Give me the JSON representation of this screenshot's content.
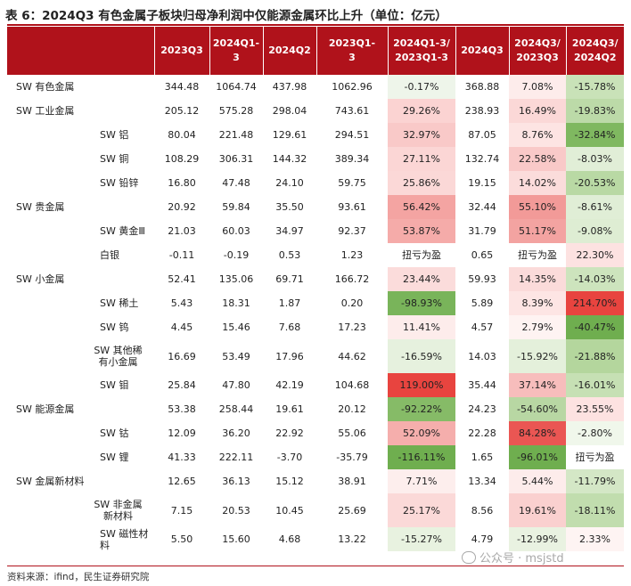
{
  "title": "表 6：2024Q3 有色金属子板块归母净利润中仅能源金属环比上升（单位：亿元）",
  "headers": [
    "",
    "2023Q3",
    "2024Q1-\n3",
    "2024Q2",
    "2023Q1-\n3",
    "2024Q1-3/\n2023Q1-3",
    "2024Q3",
    "2024Q3/\n2023Q3",
    "2024Q3/\n2024Q2"
  ],
  "colors": {
    "header_bg": "#b0121b",
    "red_strong": "#e8443f",
    "red_mid": "#f4a4a2",
    "red_light": "#fbd8d7",
    "red_pale": "#fdeceb",
    "green_strong": "#6fae4f",
    "green_mid": "#a8d08d",
    "green_light": "#d5e8c8",
    "green_pale": "#eaf3e3"
  },
  "rows": [
    {
      "name": "SW 有色金属",
      "level": 1,
      "cells": [
        "344.48",
        "1064.74",
        "437.98",
        "1062.96",
        "-0.17%",
        "368.88",
        "7.08%",
        "-15.78%"
      ],
      "colors": [
        "",
        "",
        "",
        "",
        "#eef5ea",
        "",
        "#fdeceb",
        "#c9e2b8"
      ]
    },
    {
      "name": "SW 工业金属",
      "level": 1,
      "cells": [
        "205.12",
        "575.28",
        "298.04",
        "743.61",
        "29.26%",
        "238.93",
        "16.49%",
        "-19.83%"
      ],
      "colors": [
        "",
        "",
        "",
        "",
        "#fbd3d2",
        "",
        "#fbd8d7",
        "#bcdaa8"
      ]
    },
    {
      "name": "SW 铝",
      "level": 2,
      "cells": [
        "80.04",
        "221.48",
        "129.61",
        "294.51",
        "32.97%",
        "87.05",
        "8.76%",
        "-32.84%"
      ],
      "colors": [
        "",
        "",
        "",
        "",
        "#f9c9c8",
        "",
        "#fde4e3",
        "#7fb860"
      ]
    },
    {
      "name": "SW 铜",
      "level": 2,
      "cells": [
        "108.29",
        "306.31",
        "144.32",
        "389.34",
        "27.11%",
        "132.74",
        "22.58%",
        "-8.03%"
      ],
      "colors": [
        "",
        "",
        "",
        "",
        "#fbd6d5",
        "",
        "#f9c9c8",
        "#e1eed7"
      ]
    },
    {
      "name": "SW 铅锌",
      "level": 2,
      "cells": [
        "16.80",
        "47.48",
        "24.10",
        "59.75",
        "25.86%",
        "19.15",
        "14.02%",
        "-20.53%"
      ],
      "colors": [
        "",
        "",
        "",
        "",
        "#fbd8d7",
        "",
        "#fbdcdb",
        "#b9d9a4"
      ]
    },
    {
      "name": "SW 贵金属",
      "level": 1,
      "cells": [
        "20.92",
        "59.84",
        "35.50",
        "93.61",
        "56.42%",
        "32.44",
        "55.10%",
        "-8.61%"
      ],
      "colors": [
        "",
        "",
        "",
        "",
        "#f4a4a2",
        "",
        "#f29a98",
        "#e0eed6"
      ]
    },
    {
      "name": "SW 黄金Ⅲ",
      "level": 2,
      "cells": [
        "21.03",
        "60.03",
        "34.97",
        "92.37",
        "53.87%",
        "31.79",
        "51.17%",
        "-9.08%"
      ],
      "colors": [
        "",
        "",
        "",
        "",
        "#f5aba9",
        "",
        "#f3a3a1",
        "#deedd3"
      ]
    },
    {
      "name": "白银",
      "level": 2,
      "cells": [
        "-0.11",
        "-0.19",
        "0.53",
        "1.23",
        "扭亏为盈",
        "0.65",
        "扭亏为盈",
        "22.30%"
      ],
      "colors": [
        "",
        "",
        "",
        "",
        "",
        "",
        "",
        "#fde2e1"
      ]
    },
    {
      "name": "SW 小金属",
      "level": 1,
      "cells": [
        "52.41",
        "135.06",
        "69.71",
        "166.72",
        "23.44%",
        "59.93",
        "14.35%",
        "-14.03%"
      ],
      "colors": [
        "",
        "",
        "",
        "",
        "#fbdcdb",
        "",
        "#fbdbda",
        "#cde4bd"
      ]
    },
    {
      "name": "SW 稀土",
      "level": 2,
      "cells": [
        "5.43",
        "18.31",
        "1.87",
        "0.20",
        "-98.93%",
        "5.89",
        "8.39%",
        "214.70%"
      ],
      "colors": [
        "",
        "",
        "",
        "",
        "#79b45a",
        "",
        "#fde5e4",
        "#e8443f"
      ]
    },
    {
      "name": "SW 钨",
      "level": 2,
      "cells": [
        "4.45",
        "15.46",
        "7.68",
        "17.23",
        "11.41%",
        "4.57",
        "2.79%",
        "-40.47%"
      ],
      "colors": [
        "",
        "",
        "",
        "",
        "#fdeceb",
        "",
        "#fef3f2",
        "#6fae4f"
      ]
    },
    {
      "name": "SW 其他稀有小金属",
      "level": 2,
      "tall": true,
      "cells": [
        "16.69",
        "53.49",
        "17.96",
        "44.62",
        "-16.59%",
        "14.03",
        "-15.92%",
        "-21.88%"
      ],
      "colors": [
        "",
        "",
        "",
        "",
        "#e6f1de",
        "",
        "#e4f0db",
        "#b4d69d"
      ]
    },
    {
      "name": "SW 钼",
      "level": 2,
      "cells": [
        "25.84",
        "47.80",
        "42.19",
        "104.68",
        "119.00%",
        "35.44",
        "37.14%",
        "-16.01%"
      ],
      "colors": [
        "",
        "",
        "",
        "",
        "#e8443f",
        "",
        "#f7bdbc",
        "#c6e0b4"
      ]
    },
    {
      "name": "SW 能源金属",
      "level": 1,
      "cells": [
        "53.38",
        "258.44",
        "19.61",
        "20.12",
        "-92.22%",
        "24.23",
        "-54.60%",
        "23.55%"
      ],
      "colors": [
        "",
        "",
        "",
        "",
        "#86bb67",
        "",
        "#b8d7a3",
        "#fde2e1"
      ]
    },
    {
      "name": "SW 钴",
      "level": 2,
      "cells": [
        "12.09",
        "36.20",
        "22.92",
        "55.06",
        "52.09%",
        "22.28",
        "84.28%",
        "-2.80%"
      ],
      "colors": [
        "",
        "",
        "",
        "",
        "#f5aeac",
        "",
        "#ea5653",
        "#f0f7eb"
      ]
    },
    {
      "name": "SW 锂",
      "level": 2,
      "cells": [
        "41.33",
        "222.11",
        "-3.70",
        "-35.79",
        "-116.11%",
        "1.65",
        "-96.01%",
        "扭亏为盈"
      ],
      "colors": [
        "",
        "",
        "",
        "",
        "#6fae4f",
        "",
        "#6fae4f",
        ""
      ]
    },
    {
      "name": "SW 金属新材料",
      "level": 1,
      "cells": [
        "12.65",
        "36.13",
        "15.12",
        "38.91",
        "7.71%",
        "13.34",
        "5.44%",
        "-11.79%"
      ],
      "colors": [
        "",
        "",
        "",
        "",
        "#fdeeed",
        "",
        "#fdeceb",
        "#d4e7c6"
      ]
    },
    {
      "name": "SW 非金属新材料",
      "level": 2,
      "tall": true,
      "cells": [
        "7.15",
        "20.53",
        "10.45",
        "25.69",
        "25.17%",
        "8.56",
        "19.61%",
        "-18.11%"
      ],
      "colors": [
        "",
        "",
        "",
        "",
        "#fbd9d8",
        "",
        "#fad0cf",
        "#c1ddae"
      ]
    },
    {
      "name": "SW 磁性材料",
      "level": 2,
      "cells": [
        "5.50",
        "15.60",
        "4.68",
        "13.22",
        "-15.27%",
        "4.79",
        "-12.99%",
        "2.33%"
      ],
      "colors": [
        "",
        "",
        "",
        "",
        "#e8f2e0",
        "",
        "#e9f2e1",
        "#fef4f3"
      ]
    }
  ],
  "source": "资料来源：ifind，民生证券研究院",
  "watermark": "公众号 · msjstd"
}
